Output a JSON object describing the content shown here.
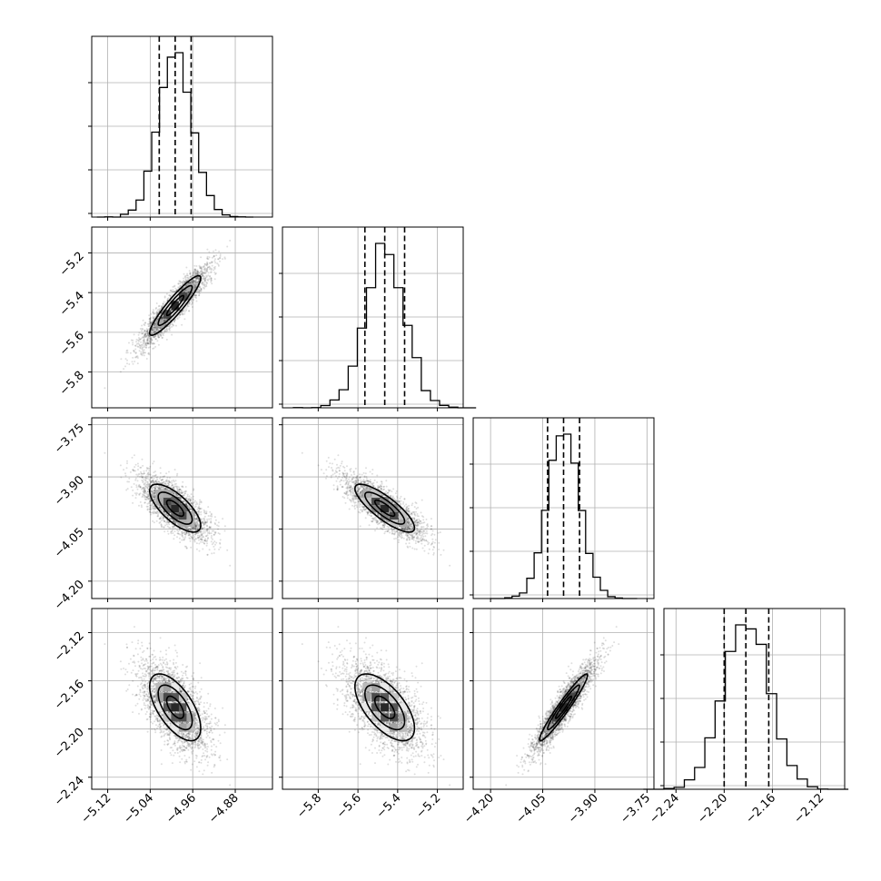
{
  "chart_data": {
    "type": "corner",
    "parameters": [
      {
        "mean": -4.993,
        "sd": 0.032,
        "ticks": [
          -5.12,
          -5.04,
          -4.96,
          -4.88
        ],
        "range": [
          -5.15,
          -4.81
        ],
        "tick_labels": [
          "−5.12",
          "−5.04",
          "−4.96",
          "−4.88"
        ],
        "quantiles": [
          -5.023,
          -4.993,
          -4.963
        ]
      },
      {
        "mean": -5.465,
        "sd": 0.1,
        "ticks": [
          -5.8,
          -5.6,
          -5.4,
          -5.2
        ],
        "range": [
          -5.98,
          -5.07
        ],
        "tick_labels": [
          "−5.8",
          "−5.6",
          "−5.4",
          "−5.2"
        ],
        "quantiles": [
          -5.565,
          -5.465,
          -5.365
        ]
      },
      {
        "mean": -3.99,
        "sd": 0.046,
        "ticks": [
          -4.2,
          -4.05,
          -3.9,
          -3.75
        ],
        "range": [
          -4.25,
          -3.73
        ],
        "tick_labels": [
          "−4.20",
          "−4.05",
          "−3.90",
          "−3.75"
        ],
        "quantiles": [
          -4.036,
          -3.99,
          -3.944
        ]
      },
      {
        "mean": -2.182,
        "sd": 0.0185,
        "ticks": [
          -2.24,
          -2.2,
          -2.16,
          -2.12
        ],
        "range": [
          -2.25,
          -2.1
        ],
        "tick_labels": [
          "−2.24",
          "−2.20",
          "−2.16",
          "−2.12"
        ],
        "quantiles": [
          -2.2,
          -2.182,
          -2.163
        ]
      }
    ],
    "correlations": [
      [
        1,
        0.92,
        -0.72,
        -0.62
      ],
      [
        0.92,
        1,
        -0.82,
        -0.62
      ],
      [
        -0.72,
        -0.82,
        1,
        0.96
      ],
      [
        -0.62,
        -0.62,
        0.96,
        1
      ]
    ],
    "histogram_bins": 20,
    "contour_levels_sigma": [
      0.5,
      1.0,
      1.5
    ],
    "grid": true
  }
}
